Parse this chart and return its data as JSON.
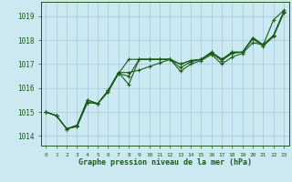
{
  "background_color": "#cce8f0",
  "grid_color": "#aaccdd",
  "line_color": "#1a5c1a",
  "xlabel": "Graphe pression niveau de la mer (hPa)",
  "xlim": [
    -0.5,
    23.5
  ],
  "ylim": [
    1013.6,
    1019.6
  ],
  "yticks": [
    1014,
    1015,
    1016,
    1017,
    1018,
    1019
  ],
  "xticks": [
    0,
    1,
    2,
    3,
    4,
    5,
    6,
    7,
    8,
    9,
    10,
    11,
    12,
    13,
    14,
    15,
    16,
    17,
    18,
    19,
    20,
    21,
    22,
    23
  ],
  "series": [
    [
      1015.0,
      1014.85,
      1014.3,
      1014.4,
      1015.4,
      1015.35,
      1015.85,
      1016.6,
      1017.2,
      1017.2,
      1017.2,
      1017.2,
      1017.2,
      1017.0,
      1017.15,
      1017.2,
      1017.5,
      1017.2,
      1017.5,
      1017.5,
      1018.1,
      1017.8,
      1018.2,
      1019.2
    ],
    [
      1015.0,
      1014.85,
      1014.3,
      1014.4,
      1015.4,
      1015.35,
      1015.85,
      1016.6,
      1016.5,
      1017.2,
      1017.2,
      1017.2,
      1017.2,
      1017.0,
      1017.15,
      1017.2,
      1017.5,
      1017.2,
      1017.5,
      1017.5,
      1018.1,
      1017.8,
      1018.2,
      1019.2
    ],
    [
      1015.0,
      1014.85,
      1014.3,
      1014.45,
      1015.5,
      1015.35,
      1015.9,
      1016.65,
      1016.65,
      1016.75,
      1016.9,
      1017.05,
      1017.2,
      1016.85,
      1017.1,
      1017.2,
      1017.45,
      1017.15,
      1017.45,
      1017.5,
      1018.05,
      1017.75,
      1018.15,
      1019.15
    ],
    [
      1015.0,
      1014.85,
      1014.3,
      1014.45,
      1015.5,
      1015.35,
      1015.9,
      1016.65,
      1016.15,
      1017.2,
      1017.2,
      1017.2,
      1017.2,
      1016.7,
      1017.0,
      1017.15,
      1017.4,
      1017.0,
      1017.3,
      1017.45,
      1017.9,
      1017.8,
      1018.85,
      1019.25
    ]
  ]
}
